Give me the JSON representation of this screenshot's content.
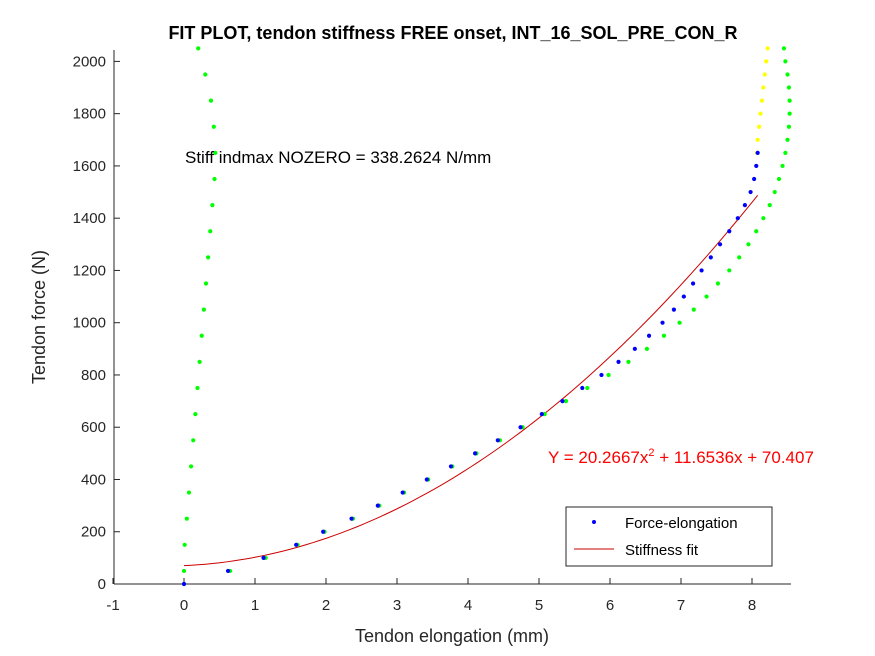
{
  "chart_data": {
    "type": "scatter",
    "title": "FIT PLOT, tendon stiffness FREE onset, INT_16_SOL_PRE_CON_R",
    "xlabel": "Tendon elongation (mm)",
    "ylabel": "Tendon force (N)",
    "xlim": [
      -1,
      8.6
    ],
    "ylim": [
      0,
      2050
    ],
    "xticks": [
      "-1",
      "0",
      "1",
      "2",
      "3",
      "4",
      "5",
      "6",
      "7",
      "8"
    ],
    "yticks": [
      "0",
      "200",
      "400",
      "600",
      "800",
      "1000",
      "1200",
      "1400",
      "1600",
      "1800",
      "2000"
    ],
    "grid": false,
    "legend_position": "bottom-right",
    "annotation_stiffness": "Stiff indmax NOZERO = 338.2624 N/mm",
    "equation": {
      "prefix": "Y = 20.2667x",
      "exponent": "2",
      "suffix": " + 11.6536x + 70.407"
    },
    "fit": {
      "a": 20.2667,
      "b": 11.6536,
      "c": 70.407,
      "x_range": [
        0,
        8.08
      ]
    },
    "series": [
      {
        "name": "",
        "color": "#00ff00",
        "points": [
          [
            0.2,
            2050
          ],
          [
            0.3,
            1950
          ],
          [
            0.38,
            1850
          ],
          [
            0.42,
            1750
          ],
          [
            0.44,
            1650
          ],
          [
            0.43,
            1550
          ],
          [
            0.4,
            1450
          ],
          [
            0.37,
            1350
          ],
          [
            0.34,
            1250
          ],
          [
            0.31,
            1150
          ],
          [
            0.28,
            1050
          ],
          [
            0.25,
            950
          ],
          [
            0.22,
            850
          ],
          [
            0.19,
            750
          ],
          [
            0.16,
            650
          ],
          [
            0.13,
            550
          ],
          [
            0.1,
            450
          ],
          [
            0.07,
            350
          ],
          [
            0.04,
            250
          ],
          [
            0.01,
            150
          ],
          [
            0.0,
            50
          ],
          [
            0.0,
            0
          ],
          [
            0.65,
            50
          ],
          [
            1.15,
            100
          ],
          [
            1.6,
            150
          ],
          [
            1.98,
            200
          ],
          [
            2.38,
            250
          ],
          [
            2.75,
            300
          ],
          [
            3.1,
            350
          ],
          [
            3.44,
            400
          ],
          [
            3.78,
            450
          ],
          [
            4.12,
            500
          ],
          [
            4.45,
            550
          ],
          [
            4.77,
            600
          ],
          [
            5.08,
            650
          ],
          [
            5.38,
            700
          ],
          [
            5.68,
            750
          ],
          [
            5.98,
            800
          ],
          [
            6.26,
            850
          ],
          [
            6.52,
            900
          ],
          [
            6.76,
            950
          ],
          [
            6.98,
            1000
          ],
          [
            7.18,
            1050
          ],
          [
            7.36,
            1100
          ],
          [
            7.52,
            1150
          ],
          [
            7.68,
            1200
          ],
          [
            7.82,
            1250
          ],
          [
            7.95,
            1300
          ],
          [
            8.06,
            1350
          ],
          [
            8.16,
            1400
          ],
          [
            8.25,
            1450
          ],
          [
            8.32,
            1500
          ],
          [
            8.38,
            1550
          ],
          [
            8.43,
            1600
          ],
          [
            8.47,
            1650
          ],
          [
            8.5,
            1700
          ],
          [
            8.52,
            1750
          ],
          [
            8.53,
            1800
          ],
          [
            8.53,
            1850
          ],
          [
            8.52,
            1900
          ],
          [
            8.5,
            1950
          ],
          [
            8.47,
            2000
          ],
          [
            8.45,
            2050
          ]
        ]
      },
      {
        "name": "",
        "color": "#ffff00",
        "points": [
          [
            8.07,
            1650
          ],
          [
            8.08,
            1700
          ],
          [
            8.1,
            1750
          ],
          [
            8.12,
            1800
          ],
          [
            8.14,
            1850
          ],
          [
            8.16,
            1900
          ],
          [
            8.18,
            1950
          ],
          [
            8.2,
            2000
          ],
          [
            8.22,
            2050
          ]
        ]
      },
      {
        "name": "Force-elongation",
        "color": "#0000ff",
        "points": [
          [
            0.0,
            0
          ],
          [
            0.62,
            50
          ],
          [
            1.12,
            100
          ],
          [
            1.58,
            150
          ],
          [
            1.96,
            200
          ],
          [
            2.36,
            250
          ],
          [
            2.73,
            300
          ],
          [
            3.08,
            350
          ],
          [
            3.42,
            400
          ],
          [
            3.76,
            450
          ],
          [
            4.1,
            500
          ],
          [
            4.42,
            550
          ],
          [
            4.74,
            600
          ],
          [
            5.04,
            650
          ],
          [
            5.33,
            700
          ],
          [
            5.61,
            750
          ],
          [
            5.88,
            800
          ],
          [
            6.12,
            850
          ],
          [
            6.35,
            900
          ],
          [
            6.55,
            950
          ],
          [
            6.74,
            1000
          ],
          [
            6.9,
            1050
          ],
          [
            7.04,
            1100
          ],
          [
            7.17,
            1150
          ],
          [
            7.29,
            1200
          ],
          [
            7.42,
            1250
          ],
          [
            7.55,
            1300
          ],
          [
            7.68,
            1350
          ],
          [
            7.8,
            1400
          ],
          [
            7.9,
            1450
          ],
          [
            7.98,
            1500
          ],
          [
            8.03,
            1550
          ],
          [
            8.06,
            1600
          ],
          [
            8.08,
            1650
          ]
        ]
      }
    ],
    "legend": [
      {
        "label": "Force-elongation",
        "marker": "dot",
        "color": "#0000ff"
      },
      {
        "label": "Stiffness fit",
        "marker": "line",
        "color": "#cc0000"
      }
    ]
  }
}
